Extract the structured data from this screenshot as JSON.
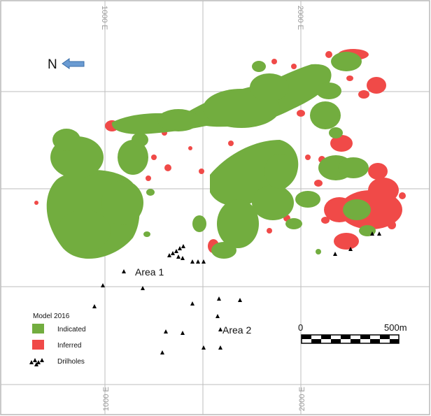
{
  "grid": {
    "labels": {
      "e1000": "1000 E",
      "e2000": "2000 E"
    }
  },
  "north": {
    "label": "N"
  },
  "areas": {
    "area1": "Area 1",
    "area2": "Area 2"
  },
  "scale_bar": {
    "start": "0",
    "end": "500m"
  },
  "legend": {
    "title": "Model 2016",
    "items": {
      "indicated": {
        "label": "Indicated",
        "color": "#72ad3f"
      },
      "inferred": {
        "label": "Inferred",
        "color": "#f04a48"
      },
      "drillholes": {
        "label": "Drilholes",
        "icon": "triangle-marker-icon"
      }
    }
  }
}
